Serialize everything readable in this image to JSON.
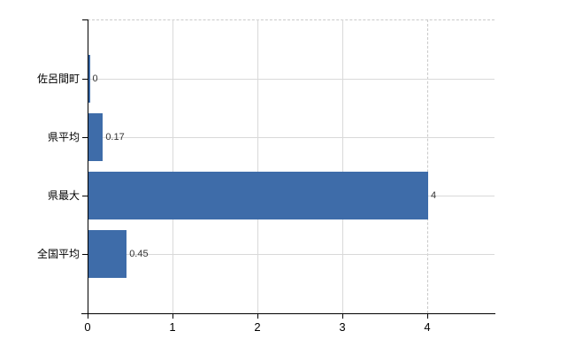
{
  "chart_data": {
    "type": "bar",
    "orientation": "horizontal",
    "title": "",
    "xlabel": "",
    "ylabel": "",
    "categories": [
      "佐呂間町",
      "県平均",
      "県最大",
      "全国平均"
    ],
    "values": [
      0,
      0.17,
      4,
      0.45
    ],
    "value_labels": [
      "0",
      "0.17",
      "4",
      "0.45"
    ],
    "x_ticks": [
      "0",
      "1",
      "2",
      "3",
      "4"
    ],
    "x_tick_values": [
      0,
      1,
      2,
      3,
      4
    ],
    "xlim": [
      0,
      4.8
    ],
    "grid": true,
    "legend": false,
    "dashed_gridline_at": 4,
    "colors": {
      "bar": "#3e6ca9",
      "gridline": "#d9d9d9",
      "dashed_line": "#c9c9c9",
      "axis": "#000000",
      "tick_text": "#000000",
      "category_text": "#000000",
      "value_text": "#333333",
      "background": "#ffffff"
    }
  }
}
